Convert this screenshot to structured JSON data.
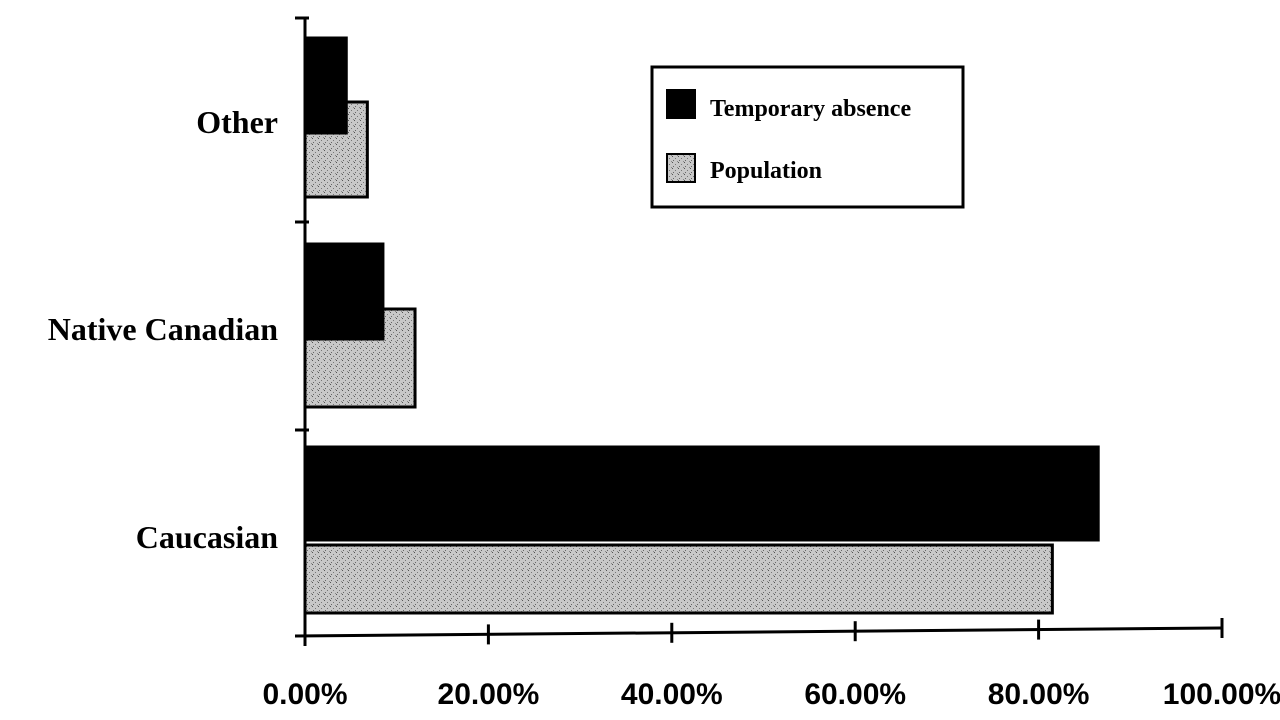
{
  "chart_data": {
    "type": "bar",
    "orientation": "horizontal",
    "categories": [
      "Other",
      "Native Canadian",
      "Caucasian"
    ],
    "series": [
      {
        "name": "Temporary absence",
        "values": [
          4.5,
          8.5,
          86.5
        ],
        "color": "#000000"
      },
      {
        "name": "Population",
        "values": [
          6.8,
          12.0,
          81.5
        ],
        "color": "#c8c8c8"
      }
    ],
    "x_ticks": [
      "0.00%",
      "20.00%",
      "40.00%",
      "60.00%",
      "80.00%",
      "100.00%"
    ],
    "xlim": [
      0,
      100
    ],
    "grid": false,
    "legend_position": "top-right",
    "title": "",
    "xlabel": "",
    "ylabel": ""
  }
}
